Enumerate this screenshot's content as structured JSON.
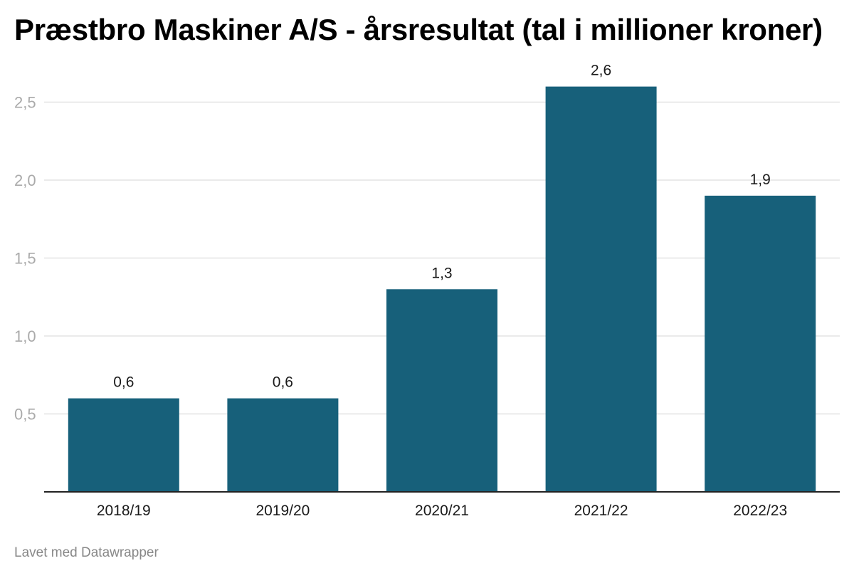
{
  "chart_data": {
    "type": "bar",
    "title": "Præstbro Maskiner A/S - årsresultat (tal i millioner kroner)",
    "categories": [
      "2018/19",
      "2019/20",
      "2020/21",
      "2021/22",
      "2022/23"
    ],
    "values": [
      0.6,
      0.6,
      1.3,
      2.6,
      1.9
    ],
    "value_labels": [
      "0,6",
      "0,6",
      "1,3",
      "2,6",
      "1,9"
    ],
    "yticks": [
      0.5,
      1.0,
      1.5,
      2.0,
      2.5
    ],
    "ytick_labels": [
      "0,5",
      "1,0",
      "1,5",
      "2,0",
      "2,5"
    ],
    "ylim": [
      0,
      2.75
    ],
    "xlabel": "",
    "ylabel": "",
    "grid": true,
    "legend": "none",
    "bar_color": "#17607a"
  },
  "footer": {
    "credit": "Lavet med Datawrapper"
  }
}
